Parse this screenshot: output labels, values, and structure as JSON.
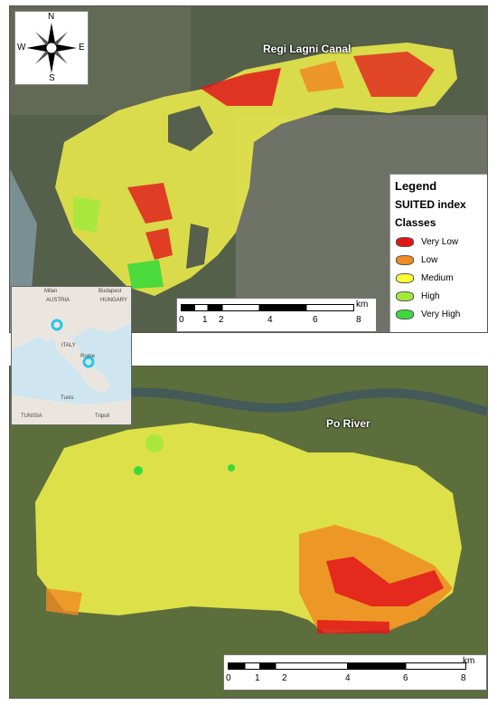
{
  "top_map": {
    "label": "Regi Lagni Canal",
    "compass": {
      "n": "N",
      "s": "S",
      "e": "E",
      "w": "W"
    },
    "scale": {
      "ticks": [
        "0",
        "1",
        "2",
        "4",
        "6",
        "8"
      ],
      "unit": "km"
    }
  },
  "legend": {
    "title": "Legend",
    "subtitle": "SUITED index",
    "classes_title": "Classes",
    "items": [
      {
        "label": "Very Low",
        "color": "#e0161b"
      },
      {
        "label": "Low",
        "color": "#f08a22"
      },
      {
        "label": "Medium",
        "color": "#ffff33"
      },
      {
        "label": "High",
        "color": "#a4e83c"
      },
      {
        "label": "Very High",
        "color": "#3bd93b"
      }
    ]
  },
  "inset_map": {
    "labels": [
      "Milan",
      "Budapest",
      "AUSTRIA",
      "HUNGARY",
      "ITALY",
      "Rome",
      "Tunis",
      "TUNISIA",
      "Tripoli"
    ]
  },
  "bottom_map": {
    "label": "Po River",
    "scale": {
      "ticks": [
        "0",
        "1",
        "2",
        "4",
        "6",
        "8"
      ],
      "unit": "km"
    }
  }
}
